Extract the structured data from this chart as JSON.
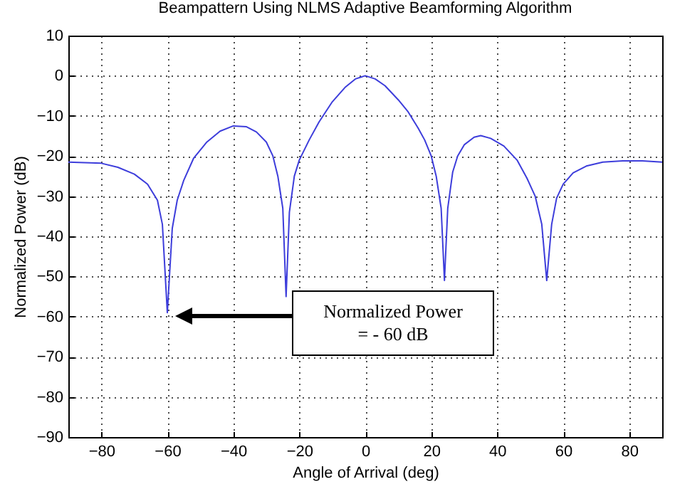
{
  "chart_data": {
    "type": "line",
    "title": "Beampattern Using NLMS Adaptive Beamforming Algorithm",
    "xlabel": "Angle of Arrival (deg)",
    "ylabel": "Normalized Power (dB)",
    "annotations": [
      "Normalized Power\n= - 60 dB"
    ],
    "series": [
      {
        "color": "#3d3ddb",
        "x": [
          -90,
          -80,
          -75,
          -70,
          -66,
          -63,
          -61.5,
          -60,
          -58.5,
          -57,
          -55,
          -52,
          -48,
          -44,
          -40,
          -36,
          -33,
          -30,
          -28,
          -26.5,
          -25,
          -24,
          -23,
          -21.5,
          -20,
          -17,
          -14,
          -10,
          -6,
          -3,
          0,
          3,
          6,
          10,
          13,
          16,
          18,
          20,
          21.5,
          23,
          24,
          25,
          26.5,
          28,
          30,
          33,
          35,
          38,
          42,
          46,
          49,
          51.5,
          53.5,
          55,
          56.5,
          58,
          60,
          63,
          67,
          72,
          78,
          84,
          90
        ],
        "values": [
          -21.5,
          -21.8,
          -22.8,
          -24.5,
          -27,
          -31,
          -37,
          -59,
          -38,
          -31,
          -26,
          -20.5,
          -16.5,
          -13.8,
          -12.5,
          -12.7,
          -14,
          -16.5,
          -20,
          -25,
          -33,
          -55,
          -34,
          -25,
          -21,
          -16,
          -11.5,
          -6.5,
          -2.8,
          -0.8,
          0,
          -0.8,
          -2.5,
          -6,
          -9,
          -13,
          -16,
          -20,
          -25,
          -33,
          -51,
          -33,
          -24,
          -20,
          -17.2,
          -15.3,
          -14.9,
          -15.6,
          -17.5,
          -21,
          -25.5,
          -30,
          -37,
          -51,
          -37,
          -30.5,
          -27,
          -24.2,
          -22.5,
          -21.5,
          -21.2,
          -21.2,
          -21.5
        ]
      }
    ],
    "xlim": [
      -90,
      90
    ],
    "xticks": [
      -80,
      -60,
      -40,
      -20,
      0,
      20,
      40,
      60,
      80
    ],
    "ylim": [
      -90,
      10
    ],
    "yticks": [
      -90,
      -80,
      -70,
      -60,
      -50,
      -40,
      -30,
      -20,
      -10,
      0,
      10
    ],
    "grid": true,
    "legend": false
  }
}
